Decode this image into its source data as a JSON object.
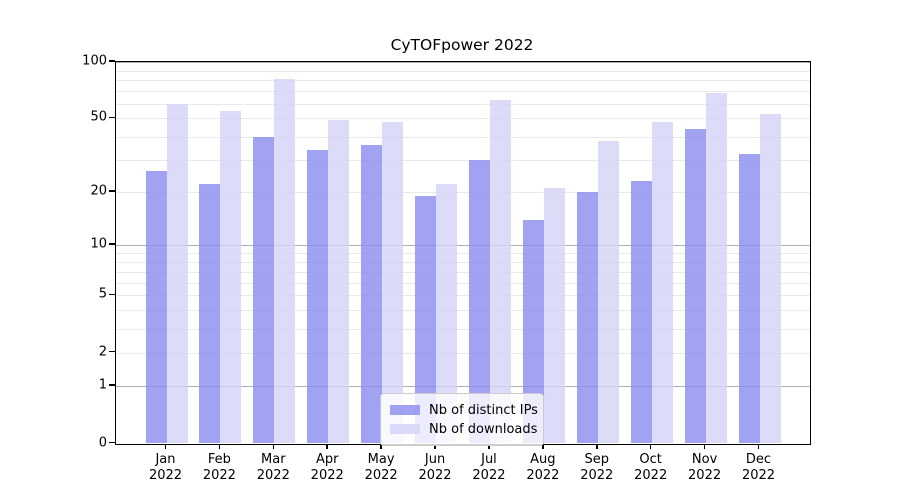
{
  "figure": {
    "title": "CyTOFpower 2022"
  },
  "chart_data": {
    "type": "bar",
    "title": "CyTOFpower 2022",
    "categories": [
      "Jan",
      "Feb",
      "Mar",
      "Apr",
      "May",
      "Jun",
      "Jul",
      "Aug",
      "Sep",
      "Oct",
      "Nov",
      "Dec"
    ],
    "tick_year": "2022",
    "series": [
      {
        "name": "Nb of distinct IPs",
        "color": "rgba(139,139,239,0.8)",
        "values": [
          26,
          22,
          40,
          34,
          36,
          19,
          30,
          14,
          20,
          23,
          44,
          32
        ]
      },
      {
        "name": "Nb of downloads",
        "color": "rgba(211,211,248,0.8)",
        "values": [
          60,
          55,
          81,
          49,
          48,
          22,
          63,
          21,
          38,
          48,
          68,
          53
        ]
      }
    ],
    "yscale": "log1p",
    "ylim": [
      0,
      100
    ],
    "yticks": [
      0,
      1,
      2,
      5,
      10,
      20,
      50,
      100
    ],
    "major_gridlines": [
      1,
      10,
      100
    ],
    "minor_gridlines": [
      2,
      3,
      4,
      5,
      6,
      7,
      8,
      9,
      20,
      30,
      40,
      50,
      60,
      70,
      80,
      90
    ],
    "grid": true,
    "legend_position": "lower center",
    "grid_major_color": "#b0b0b0",
    "grid_minor_color": "#e9e9e9",
    "xlabel": "",
    "ylabel": ""
  }
}
